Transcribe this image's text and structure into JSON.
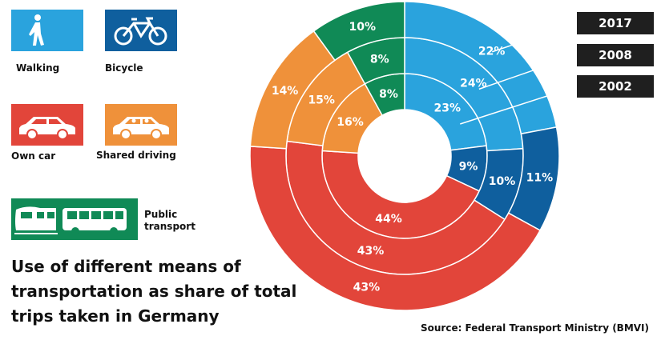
{
  "colors": {
    "walking": "#2aa3dd",
    "bicycle": "#0f5f9e",
    "own_car": "#e2453a",
    "shared": "#ef913a",
    "public": "#108a56",
    "year_box": "#1f1f1f"
  },
  "legend": {
    "walking": {
      "label": "Walking",
      "icon": "pedestrian-icon"
    },
    "bicycle": {
      "label": "Bicycle",
      "icon": "bicycle-icon"
    },
    "own_car": {
      "label": "Own car",
      "icon": "car-icon"
    },
    "shared": {
      "label": "Shared driving",
      "icon": "car-with-passengers-icon"
    },
    "public": {
      "label": "Public transport",
      "label_lines": [
        "Public",
        "transport"
      ],
      "icon": "train-and-bus-icon"
    }
  },
  "title": "Use of different means of transportation as share of total trips taken in Germany",
  "title_lines": [
    "Use of different means of",
    "transportation as share of total",
    "trips taken in Germany"
  ],
  "source": "Source: Federal Transport Ministry (BMVI)",
  "chart_data": {
    "type": "pie",
    "variant": "nested-donut",
    "categories": [
      "Walking",
      "Bicycle",
      "Own car",
      "Shared driving",
      "Public transport"
    ],
    "series": [
      {
        "name": "2002",
        "ring": "inner",
        "values": [
          23,
          9,
          44,
          16,
          8
        ],
        "labels": [
          "23%",
          "9%",
          "44%",
          "16%",
          "8%"
        ]
      },
      {
        "name": "2008",
        "ring": "middle",
        "values": [
          24,
          10,
          43,
          15,
          8
        ],
        "labels": [
          "24%",
          "10%",
          "43%",
          "15%",
          "8%"
        ]
      },
      {
        "name": "2017",
        "ring": "outer",
        "values": [
          22,
          11,
          43,
          14,
          10
        ],
        "labels": [
          "22%",
          "11%",
          "43%",
          "14%",
          "10%"
        ]
      }
    ],
    "legend_position": "left"
  }
}
